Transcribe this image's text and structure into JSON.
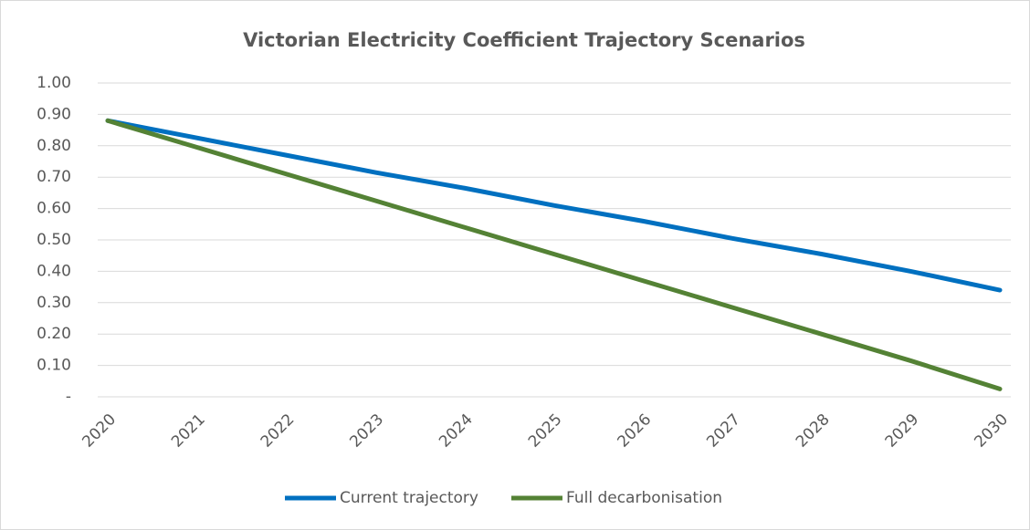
{
  "chart_data": {
    "type": "line",
    "title": "Victorian Electricity Coefficient Trajectory Scenarios",
    "categories": [
      "2020",
      "2021",
      "2022",
      "2023",
      "2024",
      "2025",
      "2026",
      "2027",
      "2028",
      "2029",
      "2030"
    ],
    "series": [
      {
        "name": "Current trajectory",
        "color": "#0070c0",
        "values": [
          0.88,
          0.825,
          0.77,
          0.715,
          0.665,
          0.61,
          0.56,
          0.505,
          0.455,
          0.4,
          0.34
        ]
      },
      {
        "name": "Full decarbonisation",
        "color": "#548235",
        "values": [
          0.88,
          0.795,
          0.71,
          0.625,
          0.54,
          0.455,
          0.37,
          0.285,
          0.2,
          0.115,
          0.025
        ]
      }
    ],
    "ylim": [
      0,
      1
    ],
    "yticks": [
      {
        "value": 0,
        "label": "-"
      },
      {
        "value": 0.1,
        "label": "0.10"
      },
      {
        "value": 0.2,
        "label": "0.20"
      },
      {
        "value": 0.3,
        "label": "0.30"
      },
      {
        "value": 0.4,
        "label": "0.40"
      },
      {
        "value": 0.5,
        "label": "0.50"
      },
      {
        "value": 0.6,
        "label": "0.60"
      },
      {
        "value": 0.7,
        "label": "0.70"
      },
      {
        "value": 0.8,
        "label": "0.80"
      },
      {
        "value": 0.9,
        "label": "0.90"
      },
      {
        "value": 1,
        "label": "1.00"
      }
    ],
    "grid": true,
    "legend": "bottom"
  }
}
